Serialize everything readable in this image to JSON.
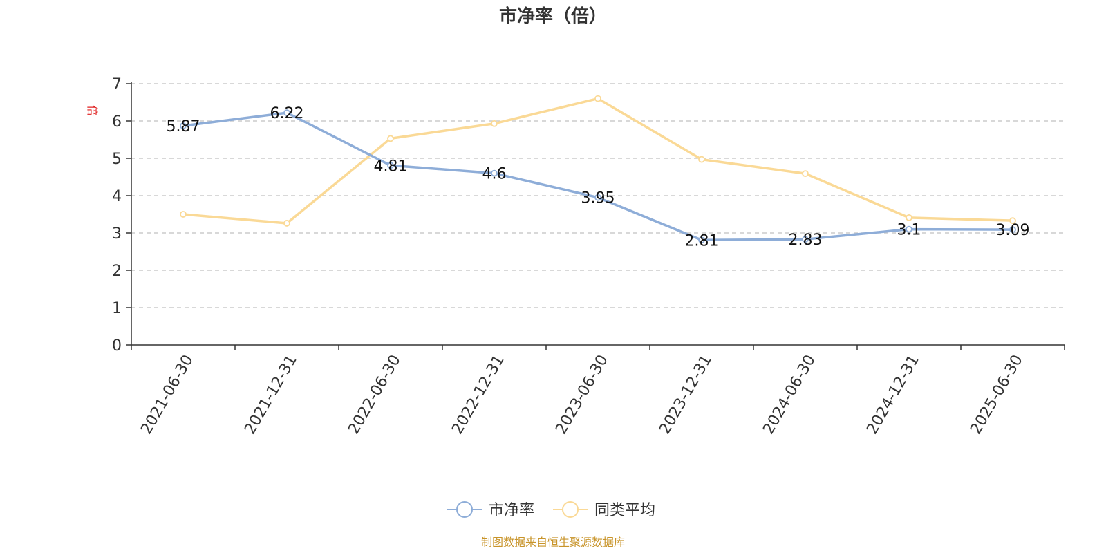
{
  "chart_data": {
    "type": "line",
    "title": "市净率（倍）",
    "ylabel": "倍",
    "ylim": [
      0,
      7
    ],
    "yticks": [
      0,
      1,
      2,
      3,
      4,
      5,
      6,
      7
    ],
    "grid": true,
    "legend_position": "bottom-center",
    "categories": [
      "2021-06-30",
      "2021-12-31",
      "2022-06-30",
      "2022-12-31",
      "2023-06-30",
      "2023-12-31",
      "2024-06-30",
      "2024-12-31",
      "2025-06-30"
    ],
    "series": [
      {
        "name": "市净率",
        "color": "#8eadd8",
        "values": [
          5.87,
          6.22,
          4.81,
          4.6,
          3.95,
          2.81,
          2.83,
          3.1,
          3.09
        ],
        "data_labels": [
          "5.87",
          "6.22",
          "4.81",
          "4.6",
          "3.95",
          "2.81",
          "2.83",
          "3.1",
          "3.09"
        ]
      },
      {
        "name": "同类平均",
        "color": "#fad996",
        "values": [
          3.5,
          3.26,
          5.53,
          5.93,
          6.6,
          4.97,
          4.59,
          3.41,
          3.33
        ]
      }
    ]
  },
  "colors": {
    "axis": "#333333",
    "grid": "#cccccc",
    "unit": "#e02020",
    "source": "#c8942a"
  },
  "source_note": "制图数据来自恒生聚源数据库"
}
